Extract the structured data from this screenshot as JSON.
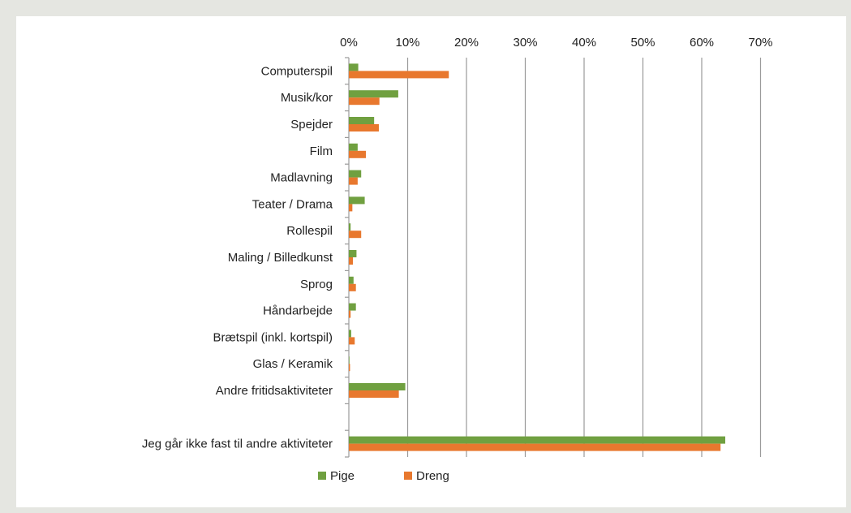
{
  "colors": {
    "pige": "#70a040",
    "dreng": "#e8782e",
    "grid": "#9a9a9a",
    "background": "#e5e6e1",
    "card": "#ffffff"
  },
  "chart_data": {
    "type": "bar",
    "orientation": "horizontal",
    "x_axis_position": "top",
    "xlim": [
      0,
      70
    ],
    "x_ticks": [
      "0%",
      "10%",
      "20%",
      "30%",
      "40%",
      "50%",
      "60%",
      "70%"
    ],
    "grid": true,
    "legend_position": "bottom",
    "categories": [
      "Computerspil",
      "Musik/kor",
      "Spejder",
      "Film",
      "Madlavning",
      "Teater / Drama",
      "Rollespil",
      "Maling / Billedkunst",
      "Sprog",
      "Håndarbejde",
      "Brætspil (inkl. kortspil)",
      "Glas / Keramik",
      "Andre fritidsaktiviteter",
      "",
      "Jeg går ikke fast til andre aktiviteter"
    ],
    "series": [
      {
        "name": "Pige",
        "values": [
          1.6,
          8.4,
          4.3,
          1.5,
          2.1,
          2.7,
          0.3,
          1.3,
          0.8,
          1.2,
          0.4,
          0.1,
          9.6,
          0,
          64.0
        ]
      },
      {
        "name": "Dreng",
        "values": [
          17.0,
          5.2,
          5.1,
          2.9,
          1.5,
          0.6,
          2.1,
          0.7,
          1.2,
          0.3,
          1.0,
          0.2,
          8.5,
          0,
          63.2
        ]
      }
    ]
  }
}
